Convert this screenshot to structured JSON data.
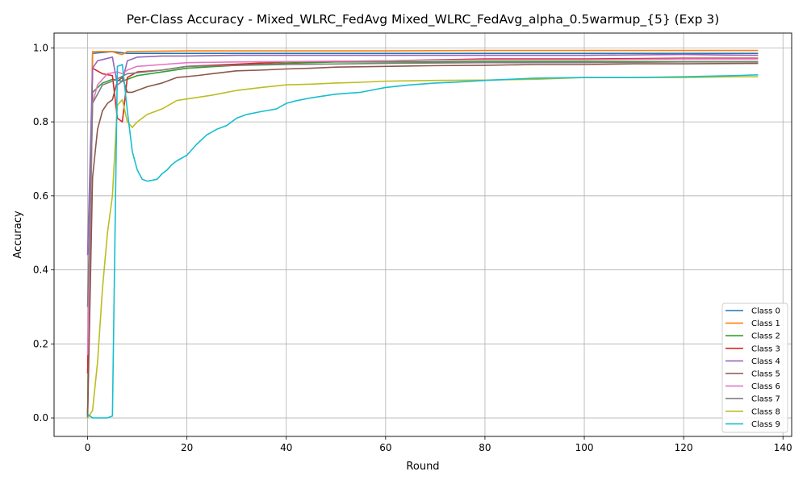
{
  "chart_data": {
    "type": "line",
    "title": "Per-Class Accuracy - Mixed_WLRC_FedAvg Mixed_WLRC_FedAvg_alpha_0.5warmup_{5} (Exp 3)",
    "xlabel": "Round",
    "ylabel": "Accuracy",
    "xlim": [
      -6.75,
      141.75
    ],
    "ylim": [
      -0.05,
      1.04
    ],
    "xticks": [
      0,
      20,
      40,
      60,
      80,
      100,
      120,
      140
    ],
    "yticks": [
      0.0,
      0.2,
      0.4,
      0.6,
      0.8,
      1.0
    ],
    "grid": true,
    "legend_position": "lower right",
    "series": [
      {
        "name": "Class 0",
        "color": "#1f77b4",
        "points": [
          [
            0,
            0.01
          ],
          [
            1,
            0.985
          ],
          [
            5,
            0.99
          ],
          [
            8,
            0.985
          ],
          [
            20,
            0.985
          ],
          [
            40,
            0.985
          ],
          [
            60,
            0.985
          ],
          [
            80,
            0.985
          ],
          [
            100,
            0.985
          ],
          [
            120,
            0.985
          ],
          [
            135,
            0.985
          ]
        ]
      },
      {
        "name": "Class 1",
        "color": "#ff7f0e",
        "points": [
          [
            0,
            0.0
          ],
          [
            1,
            0.99
          ],
          [
            5,
            0.99
          ],
          [
            6,
            0.985
          ],
          [
            7,
            0.982
          ],
          [
            8,
            0.99
          ],
          [
            20,
            0.992
          ],
          [
            40,
            0.992
          ],
          [
            60,
            0.992
          ],
          [
            80,
            0.993
          ],
          [
            100,
            0.993
          ],
          [
            120,
            0.993
          ],
          [
            135,
            0.993
          ]
        ]
      },
      {
        "name": "Class 2",
        "color": "#2ca02c",
        "points": [
          [
            0,
            0.005
          ],
          [
            1,
            0.88
          ],
          [
            3,
            0.905
          ],
          [
            5,
            0.915
          ],
          [
            7,
            0.91
          ],
          [
            10,
            0.925
          ],
          [
            15,
            0.935
          ],
          [
            20,
            0.945
          ],
          [
            30,
            0.953
          ],
          [
            40,
            0.958
          ],
          [
            50,
            0.962
          ],
          [
            60,
            0.962
          ],
          [
            70,
            0.962
          ],
          [
            80,
            0.963
          ],
          [
            100,
            0.963
          ],
          [
            120,
            0.963
          ],
          [
            135,
            0.963
          ]
        ]
      },
      {
        "name": "Class 3",
        "color": "#d62728",
        "points": [
          [
            0,
            0.12
          ],
          [
            1,
            0.945
          ],
          [
            3,
            0.93
          ],
          [
            5,
            0.925
          ],
          [
            6,
            0.81
          ],
          [
            7,
            0.8
          ],
          [
            8,
            0.92
          ],
          [
            10,
            0.935
          ],
          [
            15,
            0.94
          ],
          [
            20,
            0.95
          ],
          [
            40,
            0.962
          ],
          [
            60,
            0.965
          ],
          [
            80,
            0.97
          ],
          [
            100,
            0.97
          ],
          [
            120,
            0.972
          ],
          [
            135,
            0.972
          ]
        ]
      },
      {
        "name": "Class 4",
        "color": "#9467bd",
        "points": [
          [
            0,
            0.44
          ],
          [
            1,
            0.945
          ],
          [
            2,
            0.965
          ],
          [
            5,
            0.975
          ],
          [
            6,
            0.9
          ],
          [
            7,
            0.91
          ],
          [
            8,
            0.965
          ],
          [
            10,
            0.975
          ],
          [
            15,
            0.978
          ],
          [
            20,
            0.978
          ],
          [
            30,
            0.98
          ],
          [
            40,
            0.98
          ],
          [
            60,
            0.98
          ],
          [
            80,
            0.98
          ],
          [
            100,
            0.98
          ],
          [
            120,
            0.982
          ],
          [
            135,
            0.98
          ]
        ]
      },
      {
        "name": "Class 5",
        "color": "#8c564b",
        "points": [
          [
            0,
            0.0
          ],
          [
            1,
            0.65
          ],
          [
            2,
            0.78
          ],
          [
            3,
            0.83
          ],
          [
            4,
            0.85
          ],
          [
            5,
            0.86
          ],
          [
            6,
            0.91
          ],
          [
            7,
            0.92
          ],
          [
            8,
            0.88
          ],
          [
            9,
            0.88
          ],
          [
            12,
            0.895
          ],
          [
            15,
            0.905
          ],
          [
            18,
            0.92
          ],
          [
            22,
            0.925
          ],
          [
            25,
            0.93
          ],
          [
            30,
            0.938
          ],
          [
            35,
            0.94
          ],
          [
            40,
            0.943
          ],
          [
            45,
            0.945
          ],
          [
            50,
            0.948
          ],
          [
            60,
            0.95
          ],
          [
            70,
            0.952
          ],
          [
            80,
            0.953
          ],
          [
            90,
            0.955
          ],
          [
            100,
            0.955
          ],
          [
            110,
            0.957
          ],
          [
            120,
            0.957
          ],
          [
            135,
            0.958
          ]
        ]
      },
      {
        "name": "Class 6",
        "color": "#e377c2",
        "points": [
          [
            0,
            0.17
          ],
          [
            1,
            0.85
          ],
          [
            2,
            0.9
          ],
          [
            4,
            0.93
          ],
          [
            6,
            0.935
          ],
          [
            7,
            0.93
          ],
          [
            8,
            0.94
          ],
          [
            10,
            0.95
          ],
          [
            15,
            0.955
          ],
          [
            20,
            0.96
          ],
          [
            30,
            0.962
          ],
          [
            40,
            0.963
          ],
          [
            60,
            0.965
          ],
          [
            80,
            0.968
          ],
          [
            100,
            0.968
          ],
          [
            120,
            0.97
          ],
          [
            135,
            0.97
          ]
        ]
      },
      {
        "name": "Class 7",
        "color": "#7f7f7f",
        "points": [
          [
            0,
            0.3
          ],
          [
            1,
            0.85
          ],
          [
            3,
            0.9
          ],
          [
            5,
            0.91
          ],
          [
            8,
            0.93
          ],
          [
            15,
            0.94
          ],
          [
            20,
            0.95
          ],
          [
            40,
            0.955
          ],
          [
            60,
            0.958
          ],
          [
            80,
            0.96
          ],
          [
            100,
            0.96
          ],
          [
            120,
            0.962
          ],
          [
            135,
            0.962
          ]
        ]
      },
      {
        "name": "Class 8",
        "color": "#bcbd22",
        "points": [
          [
            0,
            0.0
          ],
          [
            1,
            0.02
          ],
          [
            2,
            0.15
          ],
          [
            3,
            0.35
          ],
          [
            4,
            0.5
          ],
          [
            5,
            0.6
          ],
          [
            6,
            0.845
          ],
          [
            7,
            0.86
          ],
          [
            8,
            0.8
          ],
          [
            9,
            0.785
          ],
          [
            10,
            0.8
          ],
          [
            12,
            0.82
          ],
          [
            15,
            0.835
          ],
          [
            18,
            0.858
          ],
          [
            20,
            0.862
          ],
          [
            25,
            0.872
          ],
          [
            30,
            0.885
          ],
          [
            35,
            0.893
          ],
          [
            40,
            0.9
          ],
          [
            45,
            0.902
          ],
          [
            50,
            0.905
          ],
          [
            55,
            0.907
          ],
          [
            60,
            0.91
          ],
          [
            70,
            0.912
          ],
          [
            80,
            0.913
          ],
          [
            90,
            0.915
          ],
          [
            100,
            0.92
          ],
          [
            110,
            0.92
          ],
          [
            120,
            0.92
          ],
          [
            130,
            0.922
          ],
          [
            135,
            0.922
          ]
        ]
      },
      {
        "name": "Class 9",
        "color": "#17becf",
        "points": [
          [
            0,
            0.01
          ],
          [
            1,
            0.0
          ],
          [
            2,
            0.0
          ],
          [
            3,
            0.0
          ],
          [
            4,
            0.0
          ],
          [
            5,
            0.005
          ],
          [
            6,
            0.95
          ],
          [
            7,
            0.955
          ],
          [
            8,
            0.83
          ],
          [
            9,
            0.72
          ],
          [
            10,
            0.67
          ],
          [
            11,
            0.645
          ],
          [
            12,
            0.64
          ],
          [
            13,
            0.642
          ],
          [
            14,
            0.645
          ],
          [
            15,
            0.66
          ],
          [
            16,
            0.67
          ],
          [
            17,
            0.685
          ],
          [
            18,
            0.695
          ],
          [
            20,
            0.71
          ],
          [
            22,
            0.74
          ],
          [
            24,
            0.765
          ],
          [
            26,
            0.78
          ],
          [
            28,
            0.79
          ],
          [
            30,
            0.81
          ],
          [
            32,
            0.82
          ],
          [
            35,
            0.828
          ],
          [
            38,
            0.835
          ],
          [
            40,
            0.85
          ],
          [
            42,
            0.857
          ],
          [
            45,
            0.865
          ],
          [
            50,
            0.875
          ],
          [
            55,
            0.88
          ],
          [
            60,
            0.893
          ],
          [
            65,
            0.9
          ],
          [
            70,
            0.905
          ],
          [
            75,
            0.908
          ],
          [
            80,
            0.912
          ],
          [
            85,
            0.915
          ],
          [
            90,
            0.918
          ],
          [
            100,
            0.92
          ],
          [
            110,
            0.92
          ],
          [
            120,
            0.922
          ],
          [
            130,
            0.925
          ],
          [
            135,
            0.927
          ]
        ]
      }
    ]
  }
}
